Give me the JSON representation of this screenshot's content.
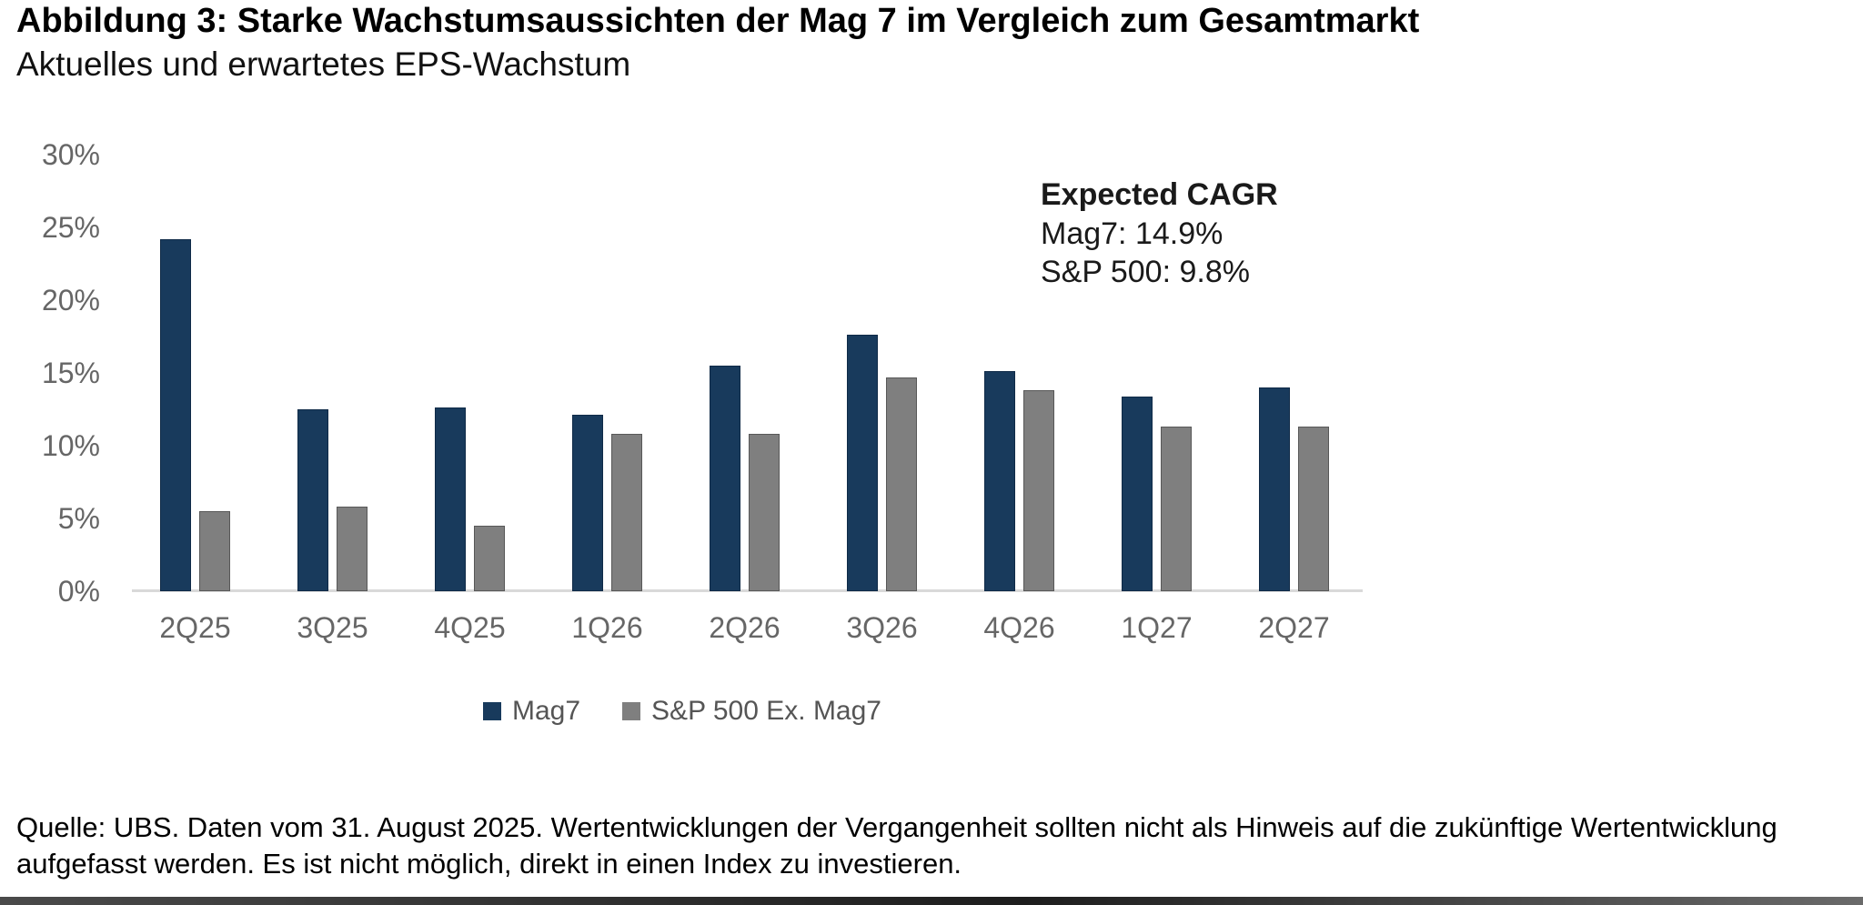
{
  "header": {
    "title": "Abbildung 3: Starke Wachstumsaussichten der Mag 7 im Vergleich zum Gesamtmarkt",
    "subtitle": "Aktuelles und erwartetes EPS-Wachstum"
  },
  "chart_data": {
    "type": "bar",
    "categories": [
      "2Q25",
      "3Q25",
      "4Q25",
      "1Q26",
      "2Q26",
      "3Q26",
      "4Q26",
      "1Q27",
      "2Q27"
    ],
    "series": [
      {
        "name": "Mag7",
        "color": "#183A5C",
        "values": [
          24.2,
          12.5,
          12.6,
          12.1,
          15.5,
          17.6,
          15.1,
          13.4,
          14.0
        ]
      },
      {
        "name": "S&P 500 Ex. Mag7",
        "color": "#7F7F7F",
        "values": [
          5.5,
          5.8,
          4.5,
          10.8,
          10.8,
          14.7,
          13.8,
          11.3,
          11.3
        ]
      }
    ],
    "title": "",
    "xlabel": "",
    "ylabel": "",
    "ylim": [
      0,
      30
    ],
    "ytick_step": 5,
    "ytick_suffix": "%",
    "grid": false,
    "legend_position": "bottom",
    "annotation": {
      "title": "Expected CAGR",
      "lines": [
        "Mag7: 14.9%",
        "S&P 500: 9.8%"
      ]
    }
  },
  "footer": {
    "source_text": "Quelle: UBS. Daten vom 31. August 2025. Wertentwicklungen der Vergangenheit sollten nicht als Hinweis auf die zukünftige Wertentwicklung aufgefasst werden. Es ist nicht möglich, direkt in einen Index zu investieren."
  },
  "colors": {
    "mag7_bar": "#183A5C",
    "sp500_bar": "#7F7F7F",
    "axis_text": "#666666",
    "axis_line": "#D9D9D9",
    "legend_text": "#555555",
    "annotation_text": "#1A1A1A"
  }
}
